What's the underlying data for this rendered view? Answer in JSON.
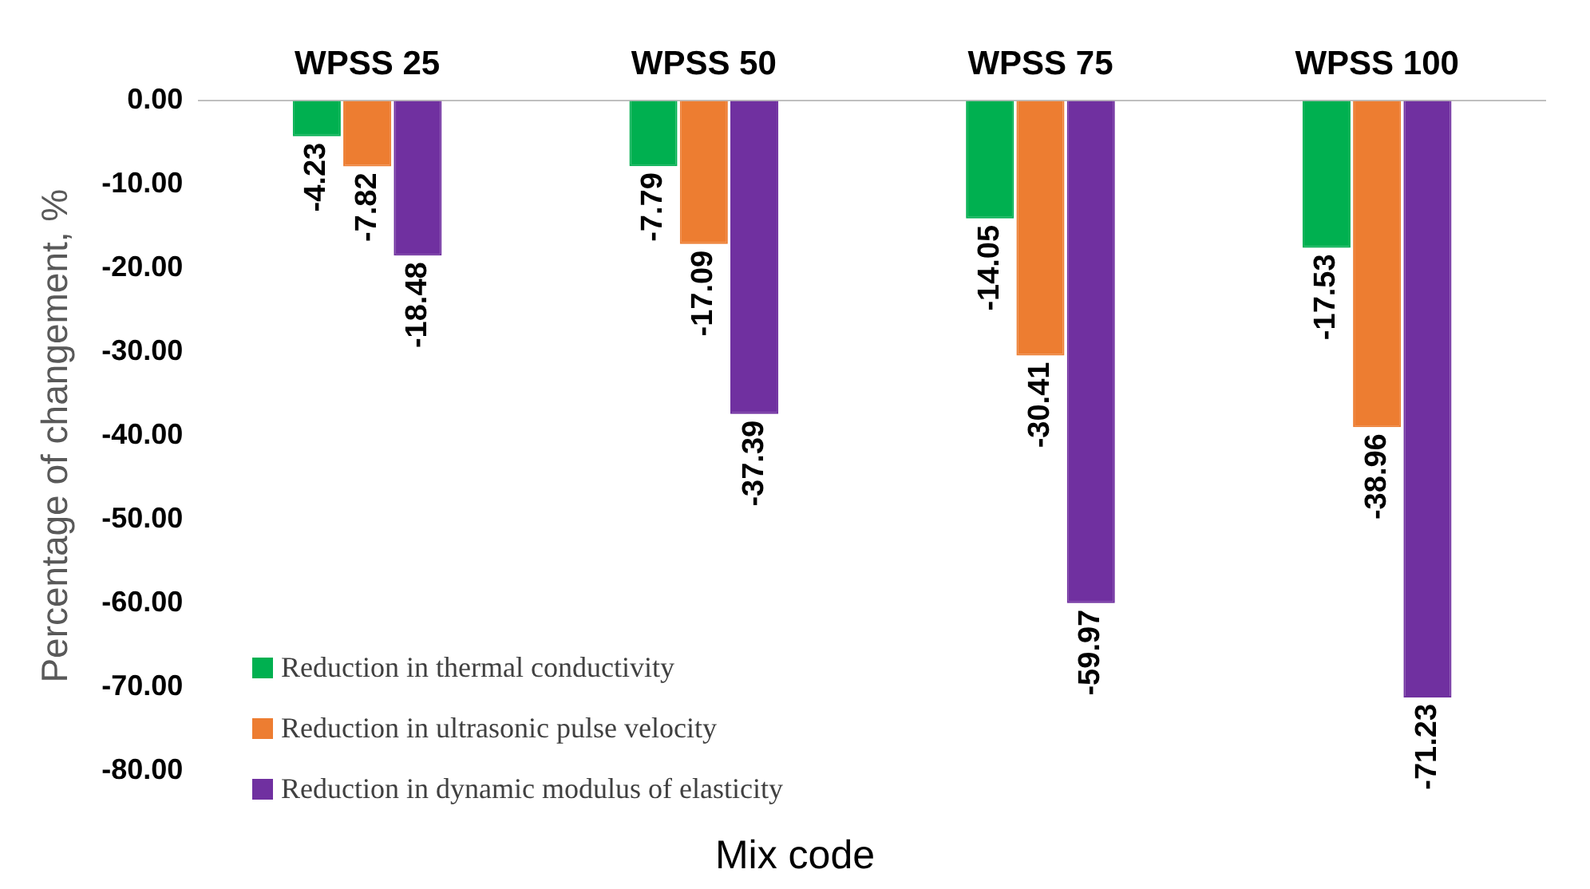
{
  "chart_data": {
    "type": "bar",
    "xlabel": "Mix code",
    "ylabel": "Percentage of changement, %",
    "categories": [
      "WPSS 25",
      "WPSS 50",
      "WPSS 75",
      "WPSS 100"
    ],
    "series": [
      {
        "name": "Reduction in thermal conductivity",
        "color": "#00b050",
        "values": [
          -4.23,
          -7.79,
          -14.05,
          -17.53
        ]
      },
      {
        "name": "Reduction in ultrasonic pulse velocity",
        "color": "#ed7d31",
        "values": [
          -7.82,
          -17.09,
          -30.41,
          -38.96
        ]
      },
      {
        "name": "Reduction in dynamic modulus of elasticity",
        "color": "#7030a0",
        "values": [
          -18.48,
          -37.39,
          -59.97,
          -71.23
        ]
      }
    ],
    "ylim": [
      -80,
      0
    ],
    "yticks": [
      {
        "value": 0,
        "label": "0.00"
      },
      {
        "value": -10,
        "label": "-10.00"
      },
      {
        "value": -20,
        "label": "-20.00"
      },
      {
        "value": -30,
        "label": "-30.00"
      },
      {
        "value": -40,
        "label": "-40.00"
      },
      {
        "value": -50,
        "label": "-50.00"
      },
      {
        "value": -60,
        "label": "-60.00"
      },
      {
        "value": -70,
        "label": "-70.00"
      },
      {
        "value": -80,
        "label": "-80.00"
      }
    ],
    "grid": false,
    "legend": "bottom left",
    "data_labels": true
  }
}
